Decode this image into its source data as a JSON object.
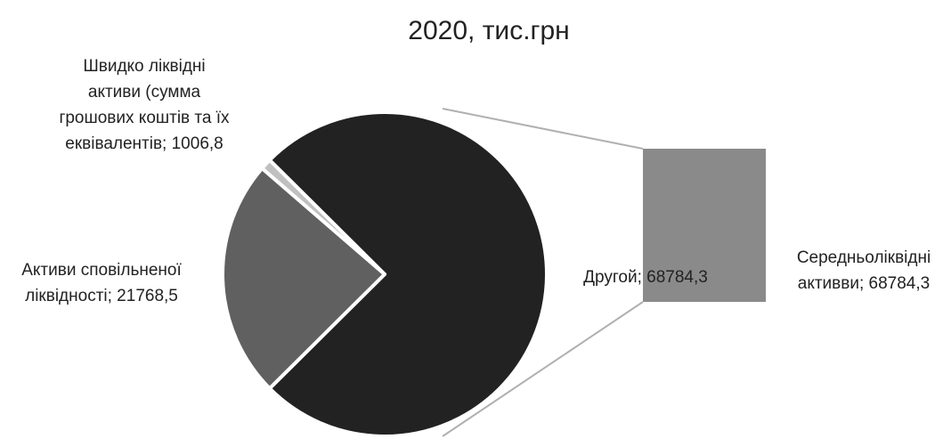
{
  "chart_data": {
    "type": "pie",
    "subtype": "bar-of-pie",
    "title": "2020, тис.грн",
    "slices": [
      {
        "label_lines": [
          "Швидко ліквідні",
          "активи (сумма",
          "грошових коштів та їх",
          "еквівалентів; 1006,8"
        ],
        "value": 1006.8,
        "color": "#c0c0c0"
      },
      {
        "label_lines": [
          "Активи сповільненої",
          "ліквідності; 21768,5"
        ],
        "value": 21768.5,
        "color": "#606060"
      },
      {
        "label_lines": [
          "Другой; 68784,3"
        ],
        "value": 68784.3,
        "color": "#222222"
      }
    ],
    "bar": {
      "label_lines": [
        "Середньоліквідні",
        "активви; 68784,3"
      ],
      "value": 68784.3,
      "color": "#8a8a8a"
    },
    "connector_color": "#b0b0b0"
  }
}
